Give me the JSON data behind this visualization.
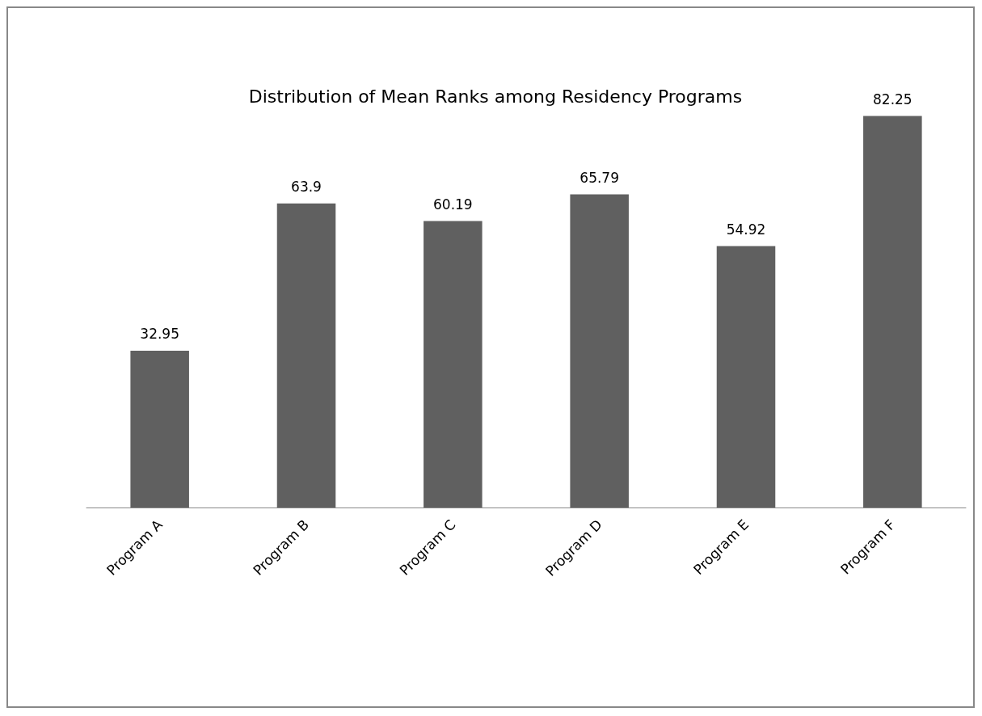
{
  "chart_data": {
    "type": "bar",
    "title": "Distribution of Mean Ranks among Residency Programs",
    "categories": [
      "Program A",
      "Program B",
      "Program C",
      "Program D",
      "Program E",
      "Program F"
    ],
    "values": [
      32.95,
      63.9,
      60.19,
      65.79,
      54.92,
      82.25
    ],
    "color": "#606060",
    "data_labels": true
  }
}
